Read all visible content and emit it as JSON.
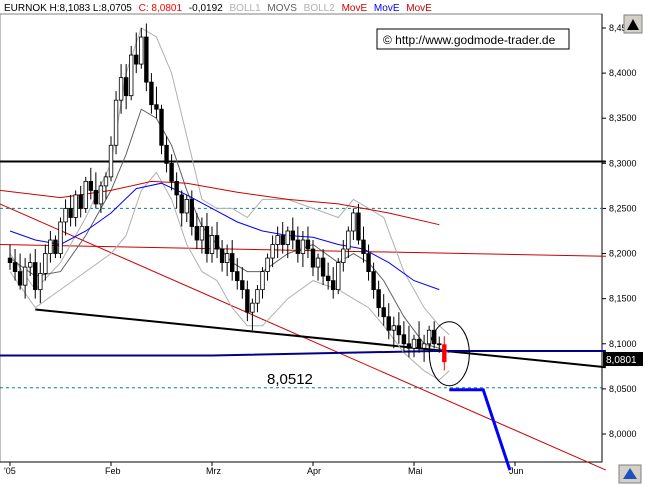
{
  "header": {
    "symbol_stats": "EURNOK H:8,1083 L:8,0705",
    "close_label": "C: 8,0801",
    "change": "-0,0192",
    "boll1": "BOLL1",
    "movs": "MOVS",
    "boll2": "BOLL2",
    "move1": "MovE",
    "move2": "MovE",
    "move3": "MovE"
  },
  "copyright": "© http://www.godmode-trader.de",
  "annotation_value": "8,0512",
  "last_price_label": "8,0801",
  "colors": {
    "background": "#ffffff",
    "up_candle": "#ffffff",
    "down_candle": "#000000",
    "last_candle": "#ff0000",
    "boll": "#b0b0b0",
    "movs": "#606060",
    "move_blue": "#0000ff",
    "move_red": "#cc0000",
    "support": "#000000",
    "dashed": "#008080",
    "projection": "#0000ff"
  },
  "chart_data": {
    "type": "candlestick",
    "title": "EURNOK",
    "ylim": [
      7.96,
      8.475
    ],
    "y_ticks": [
      "8,4500",
      "8,4000",
      "8,3500",
      "8,3000",
      "8,2500",
      "8,2000",
      "8,1500",
      "8,1000",
      "8,0500",
      "8,0000"
    ],
    "y_tick_values": [
      8.45,
      8.4,
      8.35,
      8.3,
      8.25,
      8.2,
      8.15,
      8.1,
      8.05,
      8.0
    ],
    "x_ticks": [
      "'05",
      "Feb",
      "Mrz",
      "Apr",
      "Mai",
      "Jun"
    ],
    "x_tick_index": [
      0,
      20,
      40,
      60,
      80,
      100
    ],
    "last_bar": {
      "high": 8.1083,
      "low": 8.0705,
      "close": 8.0801,
      "change": -0.0192
    },
    "candles_ohlc": [
      [
        8.195,
        8.21,
        8.182,
        8.19
      ],
      [
        8.19,
        8.205,
        8.17,
        8.18
      ],
      [
        8.18,
        8.2,
        8.16,
        8.165
      ],
      [
        8.165,
        8.195,
        8.15,
        8.185
      ],
      [
        8.185,
        8.2,
        8.175,
        8.19
      ],
      [
        8.19,
        8.205,
        8.15,
        8.16
      ],
      [
        8.16,
        8.19,
        8.145,
        8.178
      ],
      [
        8.178,
        8.21,
        8.17,
        8.2
      ],
      [
        8.2,
        8.225,
        8.19,
        8.215
      ],
      [
        8.215,
        8.22,
        8.195,
        8.2
      ],
      [
        8.2,
        8.24,
        8.195,
        8.235
      ],
      [
        8.235,
        8.26,
        8.22,
        8.25
      ],
      [
        8.25,
        8.265,
        8.23,
        8.24
      ],
      [
        8.24,
        8.27,
        8.23,
        8.265
      ],
      [
        8.265,
        8.275,
        8.24,
        8.25
      ],
      [
        8.25,
        8.285,
        8.245,
        8.28
      ],
      [
        8.28,
        8.295,
        8.26,
        8.27
      ],
      [
        8.27,
        8.29,
        8.25,
        8.255
      ],
      [
        8.255,
        8.28,
        8.245,
        8.275
      ],
      [
        8.275,
        8.29,
        8.26,
        8.285
      ],
      [
        8.285,
        8.33,
        8.28,
        8.32
      ],
      [
        8.32,
        8.38,
        8.31,
        8.37
      ],
      [
        8.37,
        8.41,
        8.355,
        8.395
      ],
      [
        8.395,
        8.41,
        8.36,
        8.375
      ],
      [
        8.375,
        8.43,
        8.37,
        8.42
      ],
      [
        8.42,
        8.445,
        8.4,
        8.41
      ],
      [
        8.41,
        8.45,
        8.405,
        8.44
      ],
      [
        8.44,
        8.455,
        8.38,
        8.39
      ],
      [
        8.39,
        8.4,
        8.355,
        8.365
      ],
      [
        8.365,
        8.385,
        8.35,
        8.36
      ],
      [
        8.36,
        8.365,
        8.31,
        8.32
      ],
      [
        8.32,
        8.33,
        8.29,
        8.3
      ],
      [
        8.3,
        8.31,
        8.27,
        8.28
      ],
      [
        8.28,
        8.29,
        8.25,
        8.265
      ],
      [
        8.265,
        8.27,
        8.23,
        8.245
      ],
      [
        8.245,
        8.265,
        8.235,
        8.26
      ],
      [
        8.26,
        8.27,
        8.22,
        8.23
      ],
      [
        8.23,
        8.245,
        8.205,
        8.215
      ],
      [
        8.215,
        8.24,
        8.2,
        8.23
      ],
      [
        8.23,
        8.245,
        8.19,
        8.2
      ],
      [
        8.2,
        8.23,
        8.19,
        8.22
      ],
      [
        8.22,
        8.235,
        8.195,
        8.205
      ],
      [
        8.205,
        8.215,
        8.18,
        8.19
      ],
      [
        8.19,
        8.21,
        8.175,
        8.2
      ],
      [
        8.2,
        8.215,
        8.17,
        8.18
      ],
      [
        8.18,
        8.195,
        8.16,
        8.17
      ],
      [
        8.17,
        8.185,
        8.15,
        8.16
      ],
      [
        8.16,
        8.17,
        8.125,
        8.135
      ],
      [
        8.135,
        8.15,
        8.115,
        8.145
      ],
      [
        8.145,
        8.165,
        8.135,
        8.16
      ],
      [
        8.16,
        8.185,
        8.15,
        8.18
      ],
      [
        8.18,
        8.2,
        8.17,
        8.195
      ],
      [
        8.195,
        8.22,
        8.185,
        8.21
      ],
      [
        8.21,
        8.23,
        8.195,
        8.22
      ],
      [
        8.22,
        8.235,
        8.2,
        8.21
      ],
      [
        8.21,
        8.23,
        8.195,
        8.225
      ],
      [
        8.225,
        8.24,
        8.205,
        8.215
      ],
      [
        8.215,
        8.23,
        8.19,
        8.2
      ],
      [
        8.2,
        8.225,
        8.185,
        8.215
      ],
      [
        8.215,
        8.23,
        8.195,
        8.205
      ],
      [
        8.205,
        8.215,
        8.175,
        8.185
      ],
      [
        8.185,
        8.2,
        8.17,
        8.195
      ],
      [
        8.195,
        8.205,
        8.165,
        8.175
      ],
      [
        8.175,
        8.19,
        8.16,
        8.17
      ],
      [
        8.17,
        8.185,
        8.15,
        8.16
      ],
      [
        8.16,
        8.195,
        8.155,
        8.19
      ],
      [
        8.19,
        8.215,
        8.18,
        8.205
      ],
      [
        8.205,
        8.23,
        8.195,
        8.225
      ],
      [
        8.225,
        8.25,
        8.215,
        8.245
      ],
      [
        8.245,
        8.255,
        8.21,
        8.215
      ],
      [
        8.215,
        8.23,
        8.19,
        8.2
      ],
      [
        8.2,
        8.21,
        8.17,
        8.18
      ],
      [
        8.18,
        8.19,
        8.15,
        8.16
      ],
      [
        8.16,
        8.17,
        8.13,
        8.14
      ],
      [
        8.14,
        8.155,
        8.12,
        8.13
      ],
      [
        8.13,
        8.145,
        8.105,
        8.115
      ],
      [
        8.115,
        8.13,
        8.095,
        8.12
      ],
      [
        8.12,
        8.135,
        8.1,
        8.11
      ],
      [
        8.11,
        8.125,
        8.09,
        8.1
      ],
      [
        8.1,
        8.12,
        8.085,
        8.095
      ],
      [
        8.095,
        8.11,
        8.085,
        8.105
      ],
      [
        8.105,
        8.125,
        8.09,
        8.095
      ],
      [
        8.095,
        8.11,
        8.08,
        8.1
      ],
      [
        8.1,
        8.12,
        8.09,
        8.115
      ],
      [
        8.115,
        8.125,
        8.095,
        8.1
      ],
      [
        8.1,
        8.108,
        8.09,
        8.099
      ],
      [
        8.099,
        8.1083,
        8.0705,
        8.0801
      ]
    ]
  }
}
